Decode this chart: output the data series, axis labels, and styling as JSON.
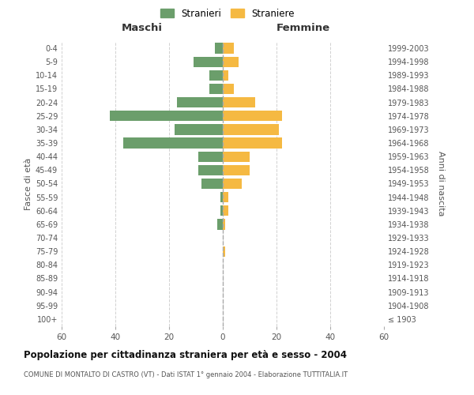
{
  "age_groups": [
    "100+",
    "95-99",
    "90-94",
    "85-89",
    "80-84",
    "75-79",
    "70-74",
    "65-69",
    "60-64",
    "55-59",
    "50-54",
    "45-49",
    "40-44",
    "35-39",
    "30-34",
    "25-29",
    "20-24",
    "15-19",
    "10-14",
    "5-9",
    "0-4"
  ],
  "birth_years": [
    "≤ 1903",
    "1904-1908",
    "1909-1913",
    "1914-1918",
    "1919-1923",
    "1924-1928",
    "1929-1933",
    "1934-1938",
    "1939-1943",
    "1944-1948",
    "1949-1953",
    "1954-1958",
    "1959-1963",
    "1964-1968",
    "1969-1973",
    "1974-1978",
    "1979-1983",
    "1984-1988",
    "1989-1993",
    "1994-1998",
    "1999-2003"
  ],
  "maschi": [
    0,
    0,
    0,
    0,
    0,
    0,
    0,
    2,
    1,
    1,
    8,
    9,
    9,
    37,
    18,
    42,
    17,
    5,
    5,
    11,
    3
  ],
  "femmine": [
    0,
    0,
    0,
    0,
    0,
    1,
    0,
    1,
    2,
    2,
    7,
    10,
    10,
    22,
    21,
    22,
    12,
    4,
    2,
    6,
    4
  ],
  "color_maschi": "#6b9e6b",
  "color_femmine": "#f5b942",
  "title_main": "Popolazione per cittadinanza straniera per età e sesso - 2004",
  "title_sub": "COMUNE DI MONTALTO DI CASTRO (VT) - Dati ISTAT 1° gennaio 2004 - Elaborazione TUTTITALIA.IT",
  "ylabel_left": "Fasce di età",
  "ylabel_right": "Anni di nascita",
  "xlabel_left": "Maschi",
  "xlabel_right": "Femmine",
  "legend_maschi": "Stranieri",
  "legend_femmine": "Straniere",
  "xlim": 60,
  "background_color": "#ffffff",
  "grid_color": "#cccccc"
}
